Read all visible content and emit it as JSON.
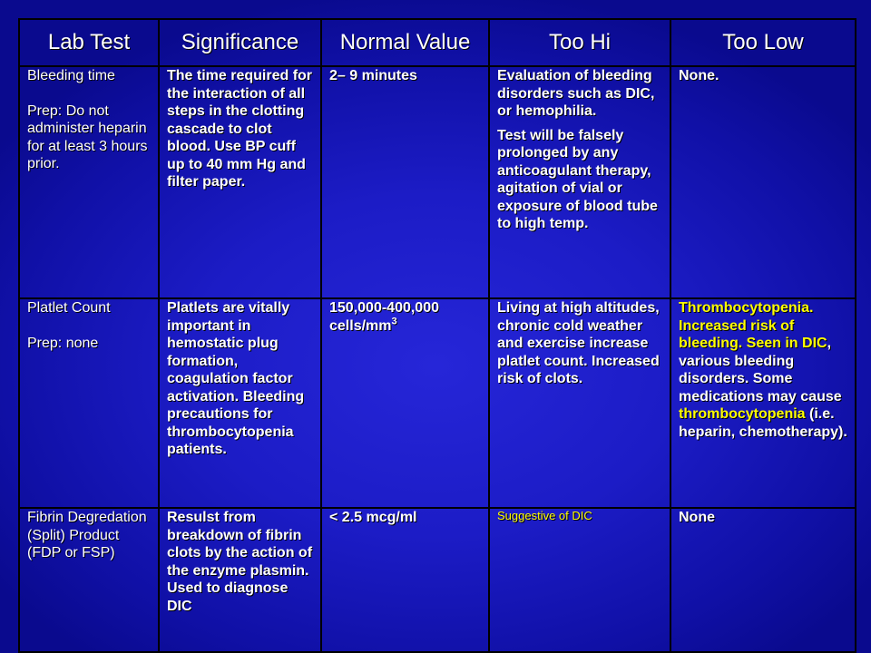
{
  "headers": [
    "Lab Test",
    "Significance",
    "Normal Value",
    "Too Hi",
    "Too Low"
  ],
  "rows": [
    {
      "test_name": "Bleeding time",
      "test_prep": "Prep: Do not administer heparin for at least  3 hours prior.",
      "significance": "The time required for the interaction of all steps in the clotting cascade to clot blood. Use BP cuff up to 40 mm Hg and filter paper.",
      "normal_value": "2– 9 minutes",
      "too_hi_1": "Evaluation of bleeding disorders such as DIC, or hemophilia.",
      "too_hi_2": "Test will be falsely prolonged by any anticoagulant therapy, agitation of vial or exposure of blood tube to high temp.",
      "too_low": "None."
    },
    {
      "test_name": "Platlet Count",
      "test_prep": "Prep: none",
      "significance": "Platlets are vitally important in hemostatic plug formation, coagulation factor activation. Bleeding precautions for thrombocytopenia patients.",
      "normal_value_main": "150,000-400,000 cells/mm",
      "normal_value_sup": "3",
      "too_hi": "Living at high altitudes, chronic cold weather and exercise increase platlet count. Increased risk of clots.",
      "too_low_part1": "Thrombocytopenia. Increased risk of bleeding. Seen in DIC",
      "too_low_part2": ", various bleeding disorders. Some medications may cause ",
      "too_low_part3": "thrombocytopenia",
      "too_low_part4": " (i.e. heparin, chemotherapy)."
    },
    {
      "test_name": "Fibrin Degredation (Split) Product (FDP or FSP)",
      "significance": "Resulst from breakdown of fibrin clots by the action of the enzyme plasmin. Used to diagnose DIC",
      "normal_value": "< 2.5 mcg/ml",
      "too_hi": "Suggestive of DIC",
      "too_low": "None"
    }
  ],
  "colors": {
    "background": "#1c1cc6",
    "text": "#ffffff",
    "highlight": "#ffff00",
    "border": "#000000"
  }
}
